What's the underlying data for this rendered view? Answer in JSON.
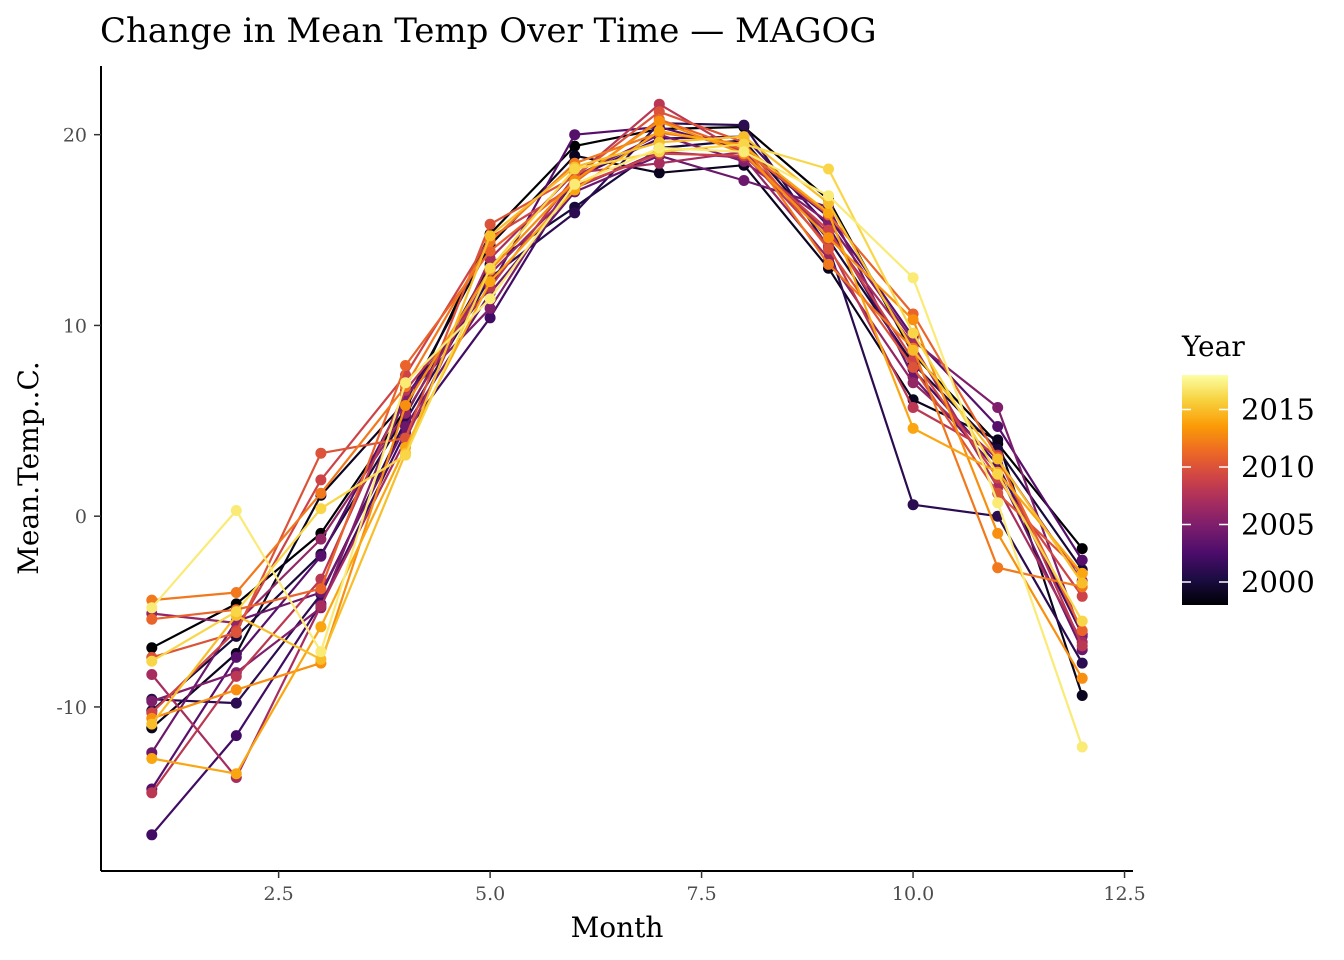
{
  "chart_data": {
    "type": "line",
    "title": "Change in Mean Temp Over Time — MAGOG",
    "xlabel": "Month",
    "ylabel": "Mean.Temp..C.",
    "xlim": [
      0.4,
      12.6
    ],
    "ylim": [
      -18.6,
      23.6
    ],
    "x_ticks": [
      2.5,
      5.0,
      7.5,
      10.0,
      12.5
    ],
    "x_tick_labels": [
      "2.5",
      "5.0",
      "7.5",
      "10.0",
      "12.5"
    ],
    "y_ticks": [
      -10,
      0,
      10,
      20
    ],
    "y_tick_labels": [
      "-10",
      "0",
      "10",
      "20"
    ],
    "grid": false,
    "color_scale": {
      "name": "Year",
      "palette": "inferno",
      "min": 1998,
      "max": 2018,
      "breaks": [
        2000,
        2005,
        2010,
        2015
      ],
      "break_labels": [
        "2000",
        "2005",
        "2010",
        "2015"
      ],
      "placement": "right",
      "stops": [
        "#000004",
        "#1b0c41",
        "#4a0c6b",
        "#781c6d",
        "#a52c60",
        "#cf4446",
        "#ed6925",
        "#fb9b06",
        "#f7d13d",
        "#fcffa4"
      ]
    },
    "x": [
      1,
      2,
      3,
      4,
      5,
      6,
      7,
      8,
      9,
      10,
      11,
      12
    ],
    "series": [
      {
        "year": 1998,
        "values": [
          -6.9,
          -4.6,
          -0.9,
          5.6,
          14.8,
          19.4,
          20.3,
          20.4,
          16.6,
          8.5,
          3.8,
          -1.7
        ]
      },
      {
        "year": 1999,
        "values": [
          -11.1,
          -7.2,
          1.1,
          6.0,
          14.2,
          18.9,
          18.0,
          18.4,
          13.0,
          6.1,
          4.0,
          -9.4
        ]
      },
      {
        "year": 2000,
        "values": [
          -10.2,
          -6.3,
          -2.0,
          5.3,
          13.2,
          16.2,
          19.3,
          19.7,
          14.5,
          8.0,
          3.5,
          -2.8
        ]
      },
      {
        "year": 2001,
        "values": [
          -9.6,
          -9.8,
          -4.1,
          5.0,
          12.5,
          15.9,
          20.6,
          20.5,
          14.1,
          0.6,
          0.0,
          -7.7
        ]
      },
      {
        "year": 2002,
        "values": [
          -16.7,
          -11.5,
          -4.6,
          4.4,
          10.4,
          17.7,
          19.8,
          19.9,
          15.2,
          7.7,
          2.7,
          -6.2
        ]
      },
      {
        "year": 2003,
        "values": [
          -14.3,
          -7.4,
          -2.1,
          6.3,
          12.0,
          20.0,
          20.4,
          19.2,
          15.7,
          9.4,
          4.7,
          -2.3
        ]
      },
      {
        "year": 2004,
        "values": [
          -12.4,
          -5.5,
          -4.0,
          4.7,
          11.7,
          17.0,
          18.9,
          17.6,
          16.2,
          7.3,
          2.4,
          -7.0
        ]
      },
      {
        "year": 2005,
        "values": [
          -9.7,
          -8.2,
          -4.8,
          6.3,
          10.9,
          17.8,
          20.0,
          18.6,
          15.4,
          9.2,
          5.7,
          -6.3
        ]
      },
      {
        "year": 2006,
        "values": [
          -5.1,
          -5.6,
          -1.2,
          5.4,
          12.7,
          17.2,
          19.1,
          18.8,
          13.5,
          7.0,
          3.0,
          -3.4
        ]
      },
      {
        "year": 2007,
        "values": [
          -8.3,
          -13.7,
          -4.7,
          4.0,
          13.5,
          18.0,
          18.5,
          19.1,
          14.8,
          9.0,
          1.5,
          -6.6
        ]
      },
      {
        "year": 2008,
        "values": [
          -14.5,
          -8.4,
          -3.3,
          6.6,
          12.0,
          17.8,
          21.6,
          19.0,
          14.2,
          5.7,
          3.2,
          -6.8
        ]
      },
      {
        "year": 2009,
        "values": [
          -10.3,
          -6.0,
          1.9,
          7.4,
          14.6,
          17.3,
          19.0,
          18.9,
          15.0,
          8.2,
          2.0,
          -4.2
        ]
      },
      {
        "year": 2010,
        "values": [
          -7.4,
          -6.1,
          3.3,
          4.1,
          15.3,
          17.8,
          21.2,
          19.6,
          14.0,
          7.8,
          1.2,
          -3.0
        ]
      },
      {
        "year": 2011,
        "values": [
          -5.4,
          -4.9,
          -3.8,
          7.9,
          13.9,
          17.5,
          20.8,
          19.2,
          15.8,
          10.6,
          3.1,
          -6.0
        ]
      },
      {
        "year": 2012,
        "values": [
          -4.4,
          -4.0,
          1.2,
          6.8,
          14.4,
          18.5,
          20.1,
          19.5,
          13.2,
          8.8,
          -2.7,
          -3.7
        ]
      },
      {
        "year": 2013,
        "values": [
          -10.6,
          -9.1,
          -7.7,
          5.8,
          12.9,
          17.6,
          20.7,
          19.0,
          14.6,
          10.3,
          -0.9,
          -8.5
        ]
      },
      {
        "year": 2014,
        "values": [
          -12.7,
          -13.5,
          -5.8,
          3.6,
          12.3,
          17.1,
          20.2,
          19.4,
          15.9,
          4.6,
          2.3,
          -3.0
        ]
      },
      {
        "year": 2015,
        "values": [
          -10.9,
          -5.2,
          -7.5,
          3.3,
          14.7,
          18.3,
          19.6,
          19.9,
          16.4,
          8.7,
          3.0,
          -3.5
        ]
      },
      {
        "year": 2016,
        "values": [
          -7.6,
          -5.0,
          0.4,
          3.2,
          13.0,
          18.2,
          19.1,
          19.5,
          18.2,
          9.6,
          2.2,
          -5.5
        ]
      },
      {
        "year": 2017,
        "values": [
          -4.8,
          0.3,
          -7.1,
          7.0,
          11.4,
          17.4,
          19.3,
          19.1,
          16.8,
          12.5,
          0.7,
          -12.1
        ]
      }
    ]
  }
}
